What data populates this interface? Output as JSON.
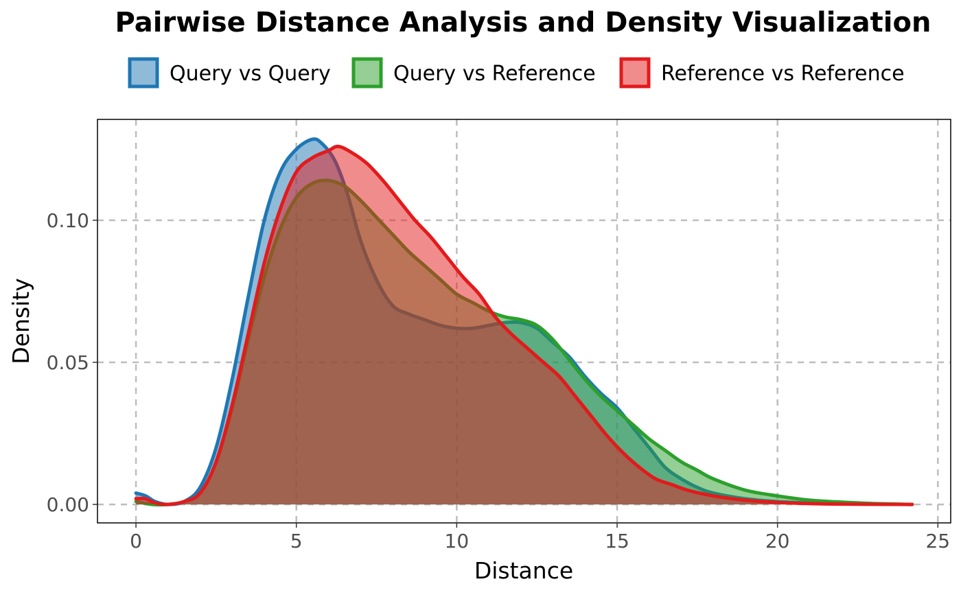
{
  "chart_data": {
    "type": "area",
    "title": "Pairwise Distance Analysis and Density Visualization",
    "xlabel": "Distance",
    "ylabel": "Density",
    "xlim": [
      -1.2,
      25.4
    ],
    "ylim": [
      -0.0065,
      0.1355
    ],
    "x_ticks": [
      0,
      5,
      10,
      15,
      20,
      25
    ],
    "x_tick_labels": [
      "0",
      "5",
      "10",
      "15",
      "20",
      "25"
    ],
    "y_ticks": [
      0.0,
      0.05,
      0.1
    ],
    "y_tick_labels": [
      "0.00",
      "0.05",
      "0.10"
    ],
    "grid": true,
    "legend_position": "top",
    "series": [
      {
        "name": "Query vs Query",
        "line_color": "#1f77b4",
        "fill_color": "#1f77b4",
        "fill_opacity": 0.5,
        "points": [
          [
            0,
            0.004
          ],
          [
            0.3,
            0.003
          ],
          [
            0.6,
            0.001
          ],
          [
            1.0,
            0.0
          ],
          [
            1.5,
            0.001
          ],
          [
            2.0,
            0.006
          ],
          [
            2.5,
            0.02
          ],
          [
            3.0,
            0.044
          ],
          [
            3.5,
            0.073
          ],
          [
            4.0,
            0.1
          ],
          [
            4.5,
            0.117
          ],
          [
            5.0,
            0.125
          ],
          [
            5.5,
            0.1285
          ],
          [
            5.8,
            0.127
          ],
          [
            6.2,
            0.121
          ],
          [
            6.6,
            0.109
          ],
          [
            7.0,
            0.093
          ],
          [
            7.5,
            0.079
          ],
          [
            8.0,
            0.07
          ],
          [
            8.5,
            0.067
          ],
          [
            9.0,
            0.065
          ],
          [
            9.5,
            0.063
          ],
          [
            10.0,
            0.062
          ],
          [
            10.5,
            0.062
          ],
          [
            11.0,
            0.063
          ],
          [
            11.5,
            0.064
          ],
          [
            12.0,
            0.064
          ],
          [
            12.5,
            0.062
          ],
          [
            13.0,
            0.057
          ],
          [
            13.5,
            0.052
          ],
          [
            14.0,
            0.045
          ],
          [
            14.5,
            0.039
          ],
          [
            15.0,
            0.034
          ],
          [
            15.5,
            0.027
          ],
          [
            16.0,
            0.02
          ],
          [
            16.5,
            0.013
          ],
          [
            17.0,
            0.009
          ],
          [
            17.5,
            0.006
          ],
          [
            18.0,
            0.004
          ],
          [
            19.0,
            0.002
          ],
          [
            20.0,
            0.001
          ],
          [
            21.0,
            0.0005
          ],
          [
            22.0,
            0.0002
          ],
          [
            23.0,
            0.0001
          ],
          [
            24.2,
            0.0
          ]
        ]
      },
      {
        "name": "Query vs Reference",
        "line_color": "#2ca02c",
        "fill_color": "#2ca02c",
        "fill_opacity": 0.5,
        "points": [
          [
            0,
            0.001
          ],
          [
            0.5,
            0.0
          ],
          [
            1.0,
            0.0
          ],
          [
            1.5,
            0.001
          ],
          [
            2.0,
            0.004
          ],
          [
            2.5,
            0.015
          ],
          [
            3.0,
            0.034
          ],
          [
            3.5,
            0.058
          ],
          [
            4.0,
            0.08
          ],
          [
            4.5,
            0.097
          ],
          [
            5.0,
            0.108
          ],
          [
            5.5,
            0.113
          ],
          [
            6.0,
            0.114
          ],
          [
            6.5,
            0.112
          ],
          [
            7.0,
            0.107
          ],
          [
            7.5,
            0.101
          ],
          [
            8.0,
            0.095
          ],
          [
            8.5,
            0.089
          ],
          [
            9.0,
            0.084
          ],
          [
            9.5,
            0.079
          ],
          [
            10.0,
            0.074
          ],
          [
            10.5,
            0.071
          ],
          [
            11.0,
            0.068
          ],
          [
            11.5,
            0.066
          ],
          [
            12.0,
            0.065
          ],
          [
            12.5,
            0.063
          ],
          [
            13.0,
            0.058
          ],
          [
            13.5,
            0.051
          ],
          [
            14.0,
            0.044
          ],
          [
            14.5,
            0.038
          ],
          [
            15.0,
            0.033
          ],
          [
            15.5,
            0.028
          ],
          [
            16.0,
            0.023
          ],
          [
            16.5,
            0.019
          ],
          [
            17.0,
            0.015
          ],
          [
            17.5,
            0.012
          ],
          [
            18.0,
            0.009
          ],
          [
            19.0,
            0.005
          ],
          [
            20.0,
            0.003
          ],
          [
            21.0,
            0.0015
          ],
          [
            22.0,
            0.0008
          ],
          [
            23.0,
            0.0003
          ],
          [
            24.2,
            0.0
          ]
        ]
      },
      {
        "name": "Reference vs Reference",
        "line_color": "#e31a1c",
        "fill_color": "#e31a1c",
        "fill_opacity": 0.5,
        "points": [
          [
            0,
            0.002
          ],
          [
            0.3,
            0.002
          ],
          [
            0.6,
            0.0005
          ],
          [
            1.0,
            0.0
          ],
          [
            1.5,
            0.001
          ],
          [
            2.0,
            0.004
          ],
          [
            2.5,
            0.015
          ],
          [
            3.0,
            0.035
          ],
          [
            3.5,
            0.06
          ],
          [
            4.0,
            0.085
          ],
          [
            4.5,
            0.104
          ],
          [
            5.0,
            0.117
          ],
          [
            5.5,
            0.122
          ],
          [
            6.0,
            0.1245
          ],
          [
            6.3,
            0.126
          ],
          [
            6.7,
            0.124
          ],
          [
            7.2,
            0.12
          ],
          [
            7.7,
            0.114
          ],
          [
            8.2,
            0.107
          ],
          [
            8.7,
            0.1
          ],
          [
            9.2,
            0.094
          ],
          [
            9.7,
            0.087
          ],
          [
            10.2,
            0.08
          ],
          [
            10.7,
            0.074
          ],
          [
            11.2,
            0.066
          ],
          [
            11.7,
            0.06
          ],
          [
            12.2,
            0.055
          ],
          [
            12.7,
            0.05
          ],
          [
            13.2,
            0.045
          ],
          [
            13.7,
            0.038
          ],
          [
            14.2,
            0.031
          ],
          [
            14.7,
            0.024
          ],
          [
            15.2,
            0.018
          ],
          [
            15.7,
            0.013
          ],
          [
            16.2,
            0.009
          ],
          [
            16.7,
            0.007
          ],
          [
            17.2,
            0.005
          ],
          [
            18.0,
            0.003
          ],
          [
            19.0,
            0.0015
          ],
          [
            20.0,
            0.0007
          ],
          [
            21.0,
            0.0003
          ],
          [
            22.0,
            0.0001
          ],
          [
            24.2,
            0.0
          ]
        ]
      }
    ]
  }
}
